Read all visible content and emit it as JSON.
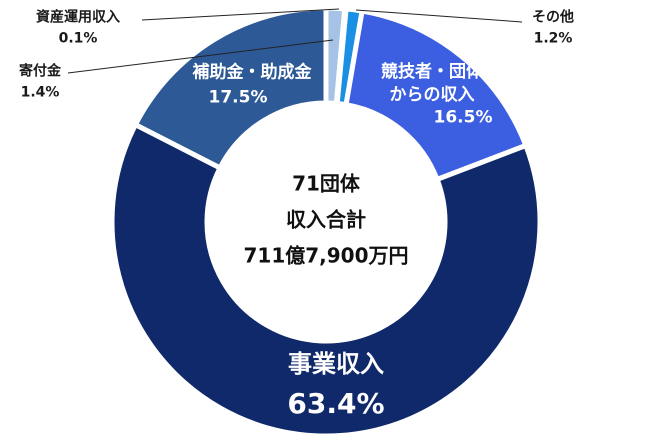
{
  "chart_data": {
    "type": "pie",
    "categories": [
      "寄付金",
      "資産運用収入",
      "その他",
      "競技者・団体からの収入",
      "事業収入",
      "補助金・助成金"
    ],
    "values": [
      1.4,
      0.1,
      1.2,
      16.5,
      63.4,
      17.5
    ],
    "value_labels": [
      "1.4%",
      "0.1%",
      "1.2%",
      "16.5%",
      "63.4%",
      "17.5%"
    ],
    "colors": [
      "#a6c3e6",
      "#dfe9f5",
      "#1b8fe3",
      "#3b5fe0",
      "#10296a",
      "#2d5a96"
    ],
    "center_text": [
      "71団体",
      "収入合計",
      "711億7,900万円"
    ]
  }
}
